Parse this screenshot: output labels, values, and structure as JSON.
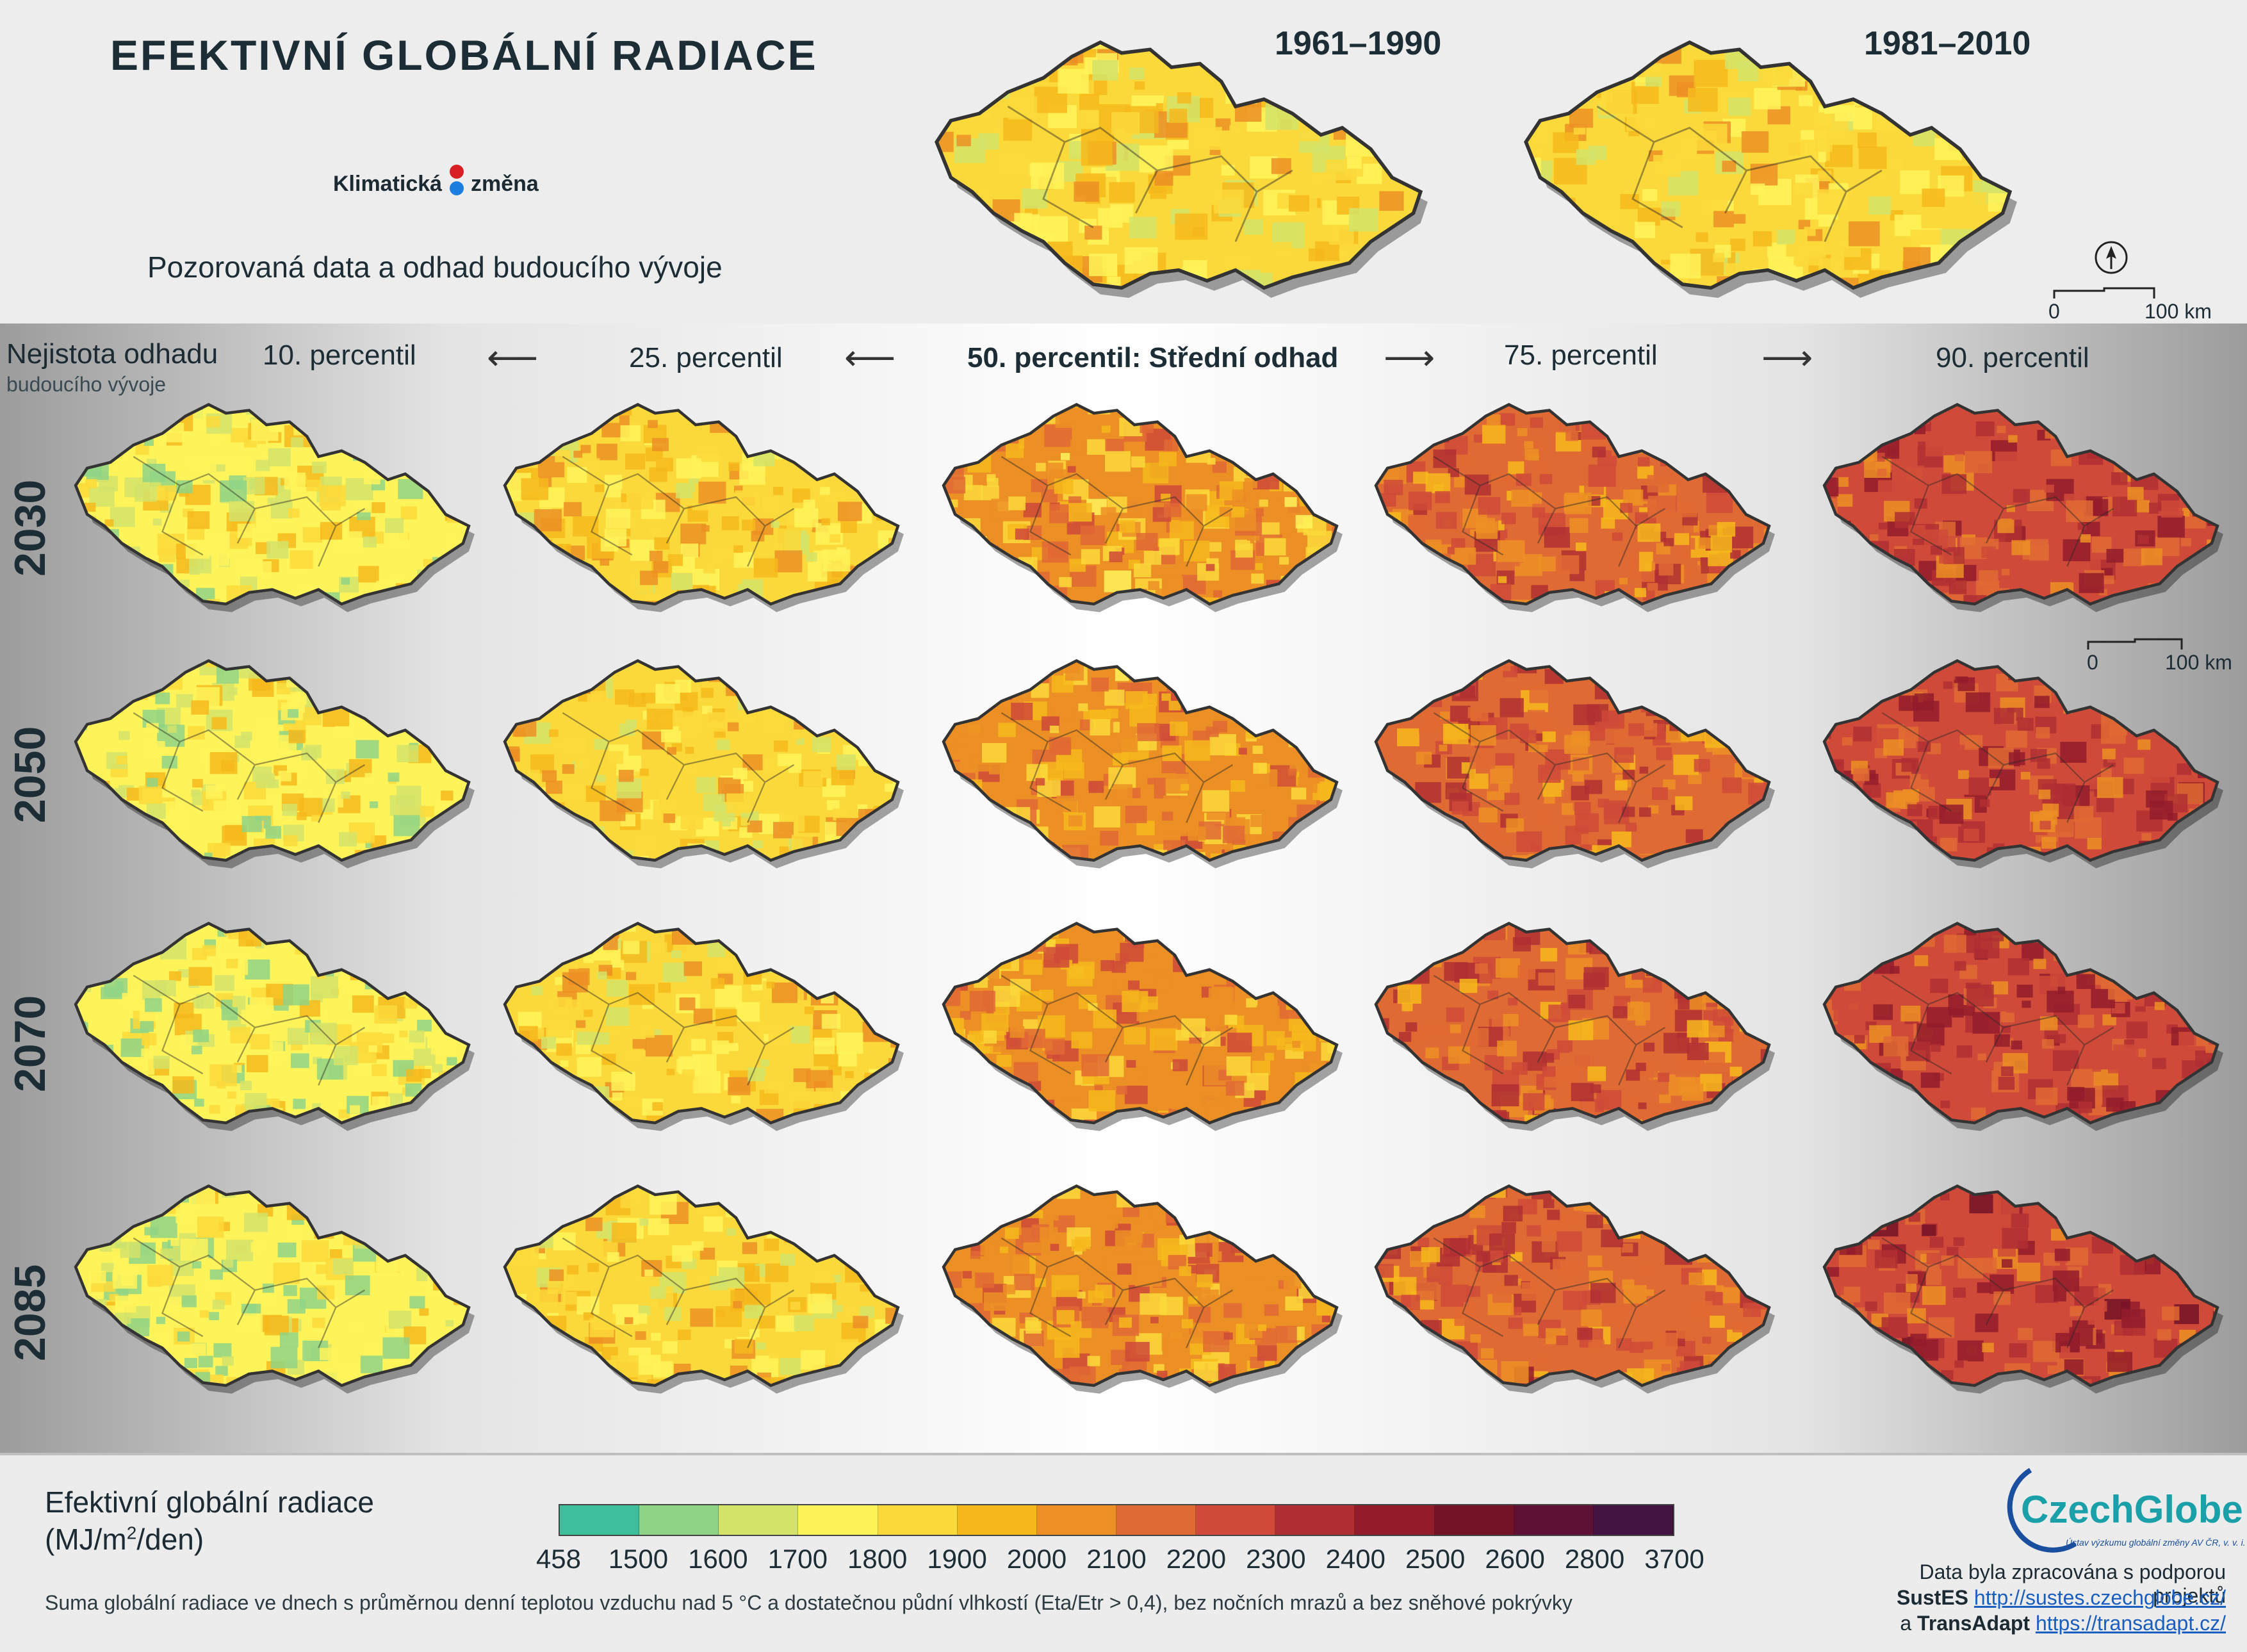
{
  "header": {
    "title": "EFEKTIVNÍ GLOBÁLNÍ RADIACE",
    "logo_left": "Klimatická",
    "logo_right": "změna",
    "subtitle": "Pozorovaná data a odhad budoucího vývoje",
    "period_1": "1961–1990",
    "period_2": "1981–2010",
    "scale_zero": "0",
    "scale_max": "100 km"
  },
  "uncertainty": {
    "label": "Nejistota odhadu",
    "sublabel": "budoucího vývoje"
  },
  "percentiles": [
    "10. percentil",
    "25. percentil",
    "50. percentil: Střední odhad",
    "75. percentil",
    "90. percentil"
  ],
  "years": [
    "2030",
    "2050",
    "2070",
    "2085"
  ],
  "legend": {
    "title": "Efektivní globální radiace",
    "unit_prefix": "(MJ/m",
    "unit_sup": "2",
    "unit_suffix": "/den)",
    "ticks": [
      "458",
      "1500",
      "1600",
      "1700",
      "1800",
      "1900",
      "2000",
      "2100",
      "2200",
      "2300",
      "2400",
      "2500",
      "2600",
      "2800",
      "3700"
    ],
    "colors": [
      "#3dbf9c",
      "#8fd486",
      "#d3e36a",
      "#fff35a",
      "#fcd93a",
      "#f6b91c",
      "#ec8f24",
      "#e06a34",
      "#cf4a38",
      "#b02f33",
      "#931c2b",
      "#741327",
      "#5e1035",
      "#421241"
    ],
    "footnote": "Suma globální radiace ve dnech s průměrnou denní teplotou vzduchu nad 5 °C a dostatečnou půdní vlhkostí (Eta/Etr > 0,4), bez nočních mrazů a bez sněhové pokrývky"
  },
  "credits": {
    "brand": "CzechGlobe",
    "brand_tag": "Ústav výzkumu globální změny AV ČR, v. v. i.",
    "line1": "Data byla zpracována s podporou projektů",
    "project1": "SustES",
    "link1": "http://sustes.czechglobe.cz/",
    "connector": "a",
    "project2": "TransAdapt",
    "link2": "https://transadapt.cz/"
  },
  "colors": {
    "text": "#1d2d35",
    "low": "#3dbf9c",
    "mid": "#f6b91c",
    "high": "#741327"
  }
}
